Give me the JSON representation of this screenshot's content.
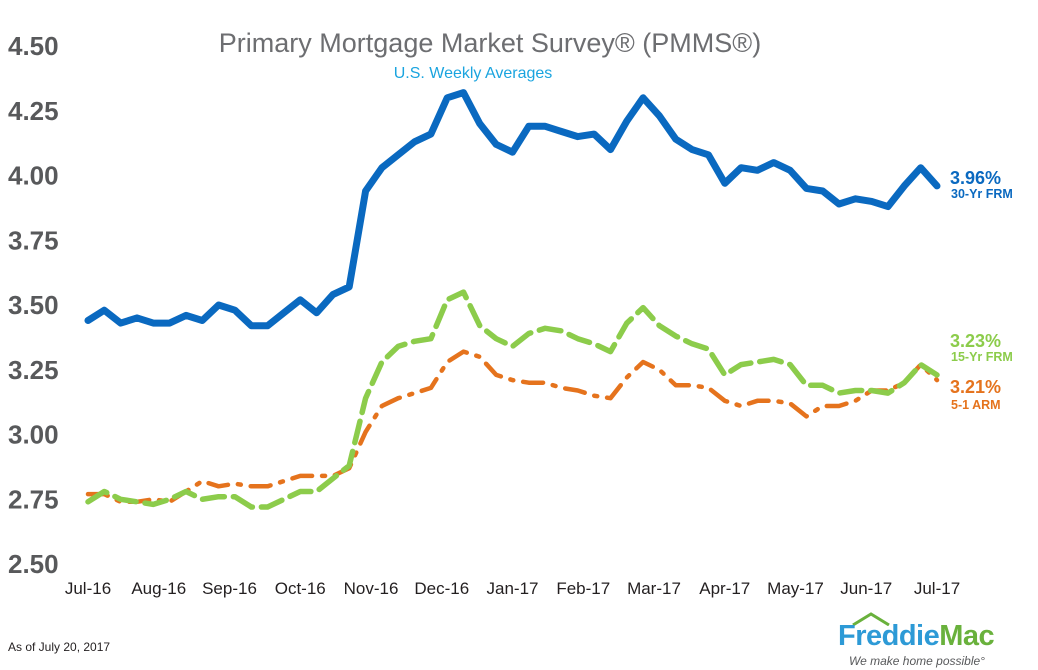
{
  "chart_data": {
    "type": "line",
    "title": "Primary Mortgage Market Survey® (PMMS®)",
    "subtitle": "U.S. Weekly Averages",
    "ylim": [
      2.5,
      4.5
    ],
    "yticks": [
      "4.50",
      "4.25",
      "4.00",
      "3.75",
      "3.50",
      "3.25",
      "3.00",
      "2.75",
      "2.50"
    ],
    "xtick_labels": [
      "Jul-16",
      "Aug-16",
      "Sep-16",
      "Oct-16",
      "Nov-16",
      "Dec-16",
      "Jan-17",
      "Feb-17",
      "Mar-17",
      "Apr-17",
      "May-17",
      "Jun-17",
      "Jul-17"
    ],
    "grid": false,
    "series": [
      {
        "name": "30-Yr FRM",
        "end_label": "3.96%",
        "color": "#0a69c0",
        "style": "solid",
        "values": [
          3.44,
          3.48,
          3.43,
          3.45,
          3.43,
          3.43,
          3.46,
          3.44,
          3.5,
          3.48,
          3.42,
          3.42,
          3.47,
          3.52,
          3.47,
          3.54,
          3.57,
          3.94,
          4.03,
          4.08,
          4.13,
          4.16,
          4.3,
          4.32,
          4.2,
          4.12,
          4.09,
          4.19,
          4.19,
          4.17,
          4.15,
          4.16,
          4.1,
          4.21,
          4.3,
          4.23,
          4.14,
          4.1,
          4.08,
          3.97,
          4.03,
          4.02,
          4.05,
          4.02,
          3.95,
          3.94,
          3.89,
          3.91,
          3.9,
          3.88,
          3.96,
          4.03,
          3.96
        ]
      },
      {
        "name": "15-Yr FRM",
        "end_label": "3.23%",
        "color": "#8ccc4b",
        "style": "dashed",
        "values": [
          2.74,
          2.78,
          2.75,
          2.74,
          2.73,
          2.75,
          2.78,
          2.75,
          2.76,
          2.76,
          2.72,
          2.72,
          2.75,
          2.78,
          2.78,
          2.83,
          2.88,
          3.14,
          3.28,
          3.34,
          3.36,
          3.37,
          3.52,
          3.55,
          3.42,
          3.37,
          3.34,
          3.39,
          3.41,
          3.4,
          3.37,
          3.35,
          3.32,
          3.43,
          3.49,
          3.42,
          3.38,
          3.35,
          3.33,
          3.23,
          3.27,
          3.28,
          3.29,
          3.27,
          3.19,
          3.19,
          3.16,
          3.17,
          3.17,
          3.16,
          3.2,
          3.27,
          3.23
        ]
      },
      {
        "name": "5-1 ARM",
        "end_label": "3.21%",
        "color": "#e5731d",
        "style": "dash-dot",
        "values": [
          2.77,
          2.77,
          2.74,
          2.74,
          2.75,
          2.74,
          2.78,
          2.82,
          2.8,
          2.81,
          2.8,
          2.8,
          2.82,
          2.84,
          2.84,
          2.84,
          2.87,
          3.01,
          3.11,
          3.14,
          3.16,
          3.18,
          3.28,
          3.32,
          3.3,
          3.23,
          3.21,
          3.2,
          3.2,
          3.18,
          3.17,
          3.15,
          3.14,
          3.22,
          3.28,
          3.25,
          3.19,
          3.19,
          3.18,
          3.13,
          3.11,
          3.13,
          3.13,
          3.12,
          3.07,
          3.11,
          3.11,
          3.13,
          3.17,
          3.17,
          3.2,
          3.27,
          3.21
        ]
      }
    ]
  },
  "footnote": "As of July 20, 2017",
  "logo": {
    "name_part1": "Freddie",
    "name_part2": "Mac",
    "tagline": "We make home possible°"
  }
}
